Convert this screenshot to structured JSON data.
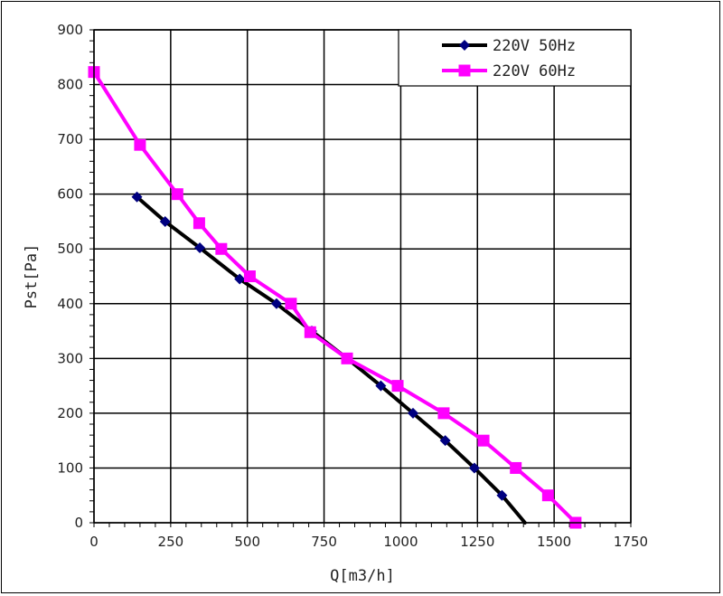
{
  "chart_data": {
    "type": "line",
    "title": "",
    "xlabel": "Q[m3/h]",
    "ylabel": "Pst[Pa]",
    "xlim": [
      0,
      1750
    ],
    "ylim": [
      0,
      900
    ],
    "xticks": [
      0,
      250,
      500,
      750,
      1000,
      1250,
      1500,
      1750
    ],
    "yticks": [
      0,
      100,
      200,
      300,
      400,
      500,
      600,
      700,
      800,
      900
    ],
    "grid": true,
    "legend_position": "top-right",
    "series": [
      {
        "name": "220V 50Hz",
        "color": "#000000",
        "marker_color": "#000080",
        "marker": "diamond",
        "points": [
          [
            140,
            595
          ],
          [
            232,
            550
          ],
          [
            345,
            502
          ],
          [
            475,
            445
          ],
          [
            595,
            400
          ],
          [
            710,
            350
          ],
          [
            825,
            300
          ],
          [
            935,
            250
          ],
          [
            1040,
            200
          ],
          [
            1145,
            150
          ],
          [
            1240,
            100
          ],
          [
            1330,
            50
          ]
        ],
        "line_end": [
          1405,
          0
        ]
      },
      {
        "name": "220V 60Hz",
        "color": "#ff00ff",
        "marker_color": "#ff00ff",
        "marker": "square",
        "points": [
          [
            0,
            823
          ],
          [
            150,
            690
          ],
          [
            272,
            600
          ],
          [
            343,
            547
          ],
          [
            415,
            500
          ],
          [
            508,
            450
          ],
          [
            642,
            400
          ],
          [
            705,
            348
          ],
          [
            825,
            300
          ],
          [
            990,
            250
          ],
          [
            1140,
            200
          ],
          [
            1270,
            150
          ],
          [
            1375,
            100
          ],
          [
            1480,
            50
          ],
          [
            1570,
            0
          ]
        ]
      }
    ]
  }
}
